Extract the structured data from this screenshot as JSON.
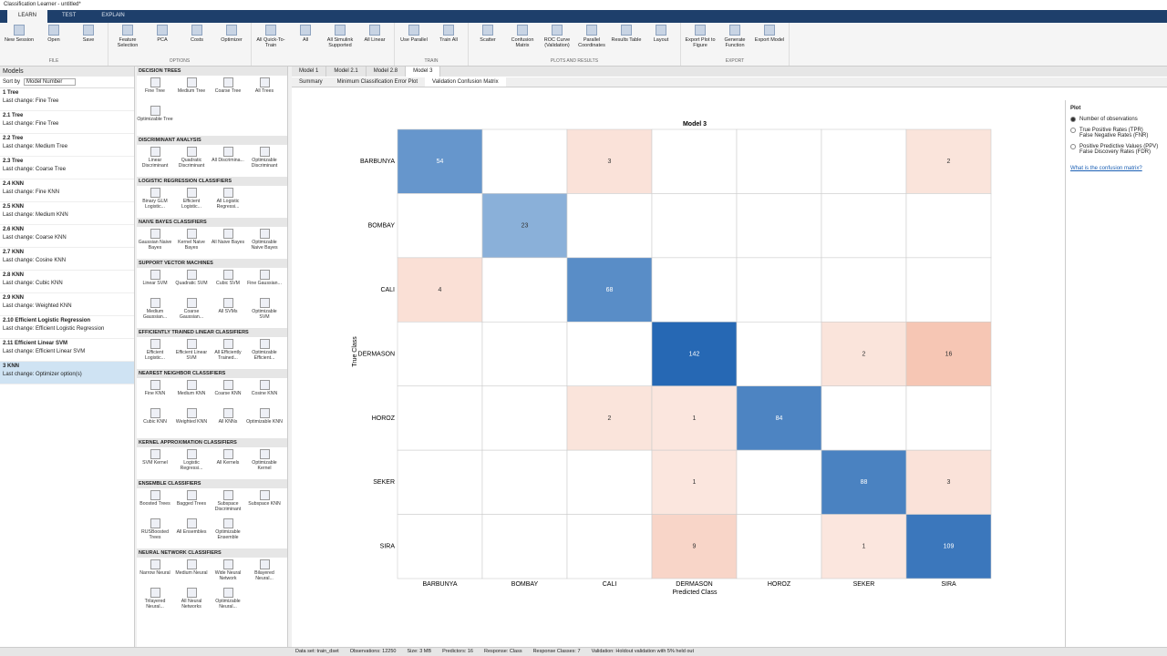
{
  "window": {
    "title": "Classification Learner - untitled*"
  },
  "tabs": [
    "LEARN",
    "TEST",
    "EXPLAIN"
  ],
  "toolstrip": [
    {
      "label": "FILE",
      "buttons": [
        "New Session",
        "Open",
        "Save"
      ]
    },
    {
      "label": "OPTIONS",
      "buttons": [
        "Feature Selection",
        "PCA",
        "Costs",
        "Optimizer"
      ]
    },
    {
      "label": null,
      "buttons": [
        "All Quick-To-Train",
        "All",
        "All Simulink Supported",
        "All Linear"
      ]
    },
    {
      "label": "TRAIN",
      "buttons": [
        "Use Parallel",
        "Train All"
      ]
    },
    {
      "label": "PLOTS AND RESULTS",
      "buttons": [
        "Scatter",
        "Confusion Matrix",
        "ROC Curve (Validation)",
        "Parallel Coordinates",
        "Results Table",
        "Layout"
      ]
    },
    {
      "label": "EXPORT",
      "buttons": [
        "Export Plot to Figure",
        "Generate Function",
        "Export Model"
      ]
    }
  ],
  "models": {
    "title": "Models",
    "sort_label": "Sort by",
    "sort_value": "Model Number",
    "items": [
      {
        "name": "1 Tree",
        "change": "Last change: Fine Tree"
      },
      {
        "name": "2.1 Tree",
        "change": "Last change: Fine Tree"
      },
      {
        "name": "2.2 Tree",
        "change": "Last change: Medium Tree"
      },
      {
        "name": "2.3 Tree",
        "change": "Last change: Coarse Tree"
      },
      {
        "name": "2.4 KNN",
        "change": "Last change: Fine KNN"
      },
      {
        "name": "2.5 KNN",
        "change": "Last change: Medium KNN"
      },
      {
        "name": "2.6 KNN",
        "change": "Last change: Coarse KNN"
      },
      {
        "name": "2.7 KNN",
        "change": "Last change: Cosine KNN"
      },
      {
        "name": "2.8 KNN",
        "change": "Last change: Cubic KNN"
      },
      {
        "name": "2.9 KNN",
        "change": "Last change: Weighted KNN"
      },
      {
        "name": "2.10 Efficient Logistic Regression",
        "change": "Last change: Efficient Logistic Regression"
      },
      {
        "name": "2.11 Efficient Linear SVM",
        "change": "Last change: Efficient Linear SVM"
      },
      {
        "name": "3 KNN",
        "change": "Last change: Optimizer option(s)"
      }
    ]
  },
  "gallery": [
    {
      "title": "DECISION TREES",
      "items": [
        "Fine Tree",
        "Medium Tree",
        "Coarse Tree",
        "All Trees",
        "Optimizable Tree"
      ]
    },
    {
      "title": "DISCRIMINANT ANALYSIS",
      "items": [
        "Linear Discriminant",
        "Quadratic Discriminant",
        "All Discrimina...",
        "Optimizable Discriminant"
      ]
    },
    {
      "title": "LOGISTIC REGRESSION CLASSIFIERS",
      "items": [
        "Binary GLM Logistic...",
        "Efficient Logistic...",
        "All Logistic Regressi..."
      ]
    },
    {
      "title": "NAIVE BAYES CLASSIFIERS",
      "items": [
        "Gaussian Naive Bayes",
        "Kernel Naive Bayes",
        "All Naive Bayes",
        "Optimizable Naive Bayes"
      ]
    },
    {
      "title": "SUPPORT VECTOR MACHINES",
      "items": [
        "Linear SVM",
        "Quadratic SVM",
        "Cubic SVM",
        "Fine Gaussian...",
        "Medium Gaussian...",
        "Coarse Gaussian...",
        "All SVMs",
        "Optimizable SVM"
      ]
    },
    {
      "title": "EFFICIENTLY TRAINED LINEAR CLASSIFIERS",
      "items": [
        "Efficient Logistic...",
        "Efficient Linear SVM",
        "All Efficiently Trained...",
        "Optimizable Efficient..."
      ]
    },
    {
      "title": "NEAREST NEIGHBOR CLASSIFIERS",
      "items": [
        "Fine KNN",
        "Medium KNN",
        "Coarse KNN",
        "Cosine KNN",
        "Cubic KNN",
        "Weighted KNN",
        "All KNNs",
        "Optimizable KNN"
      ]
    },
    {
      "title": "KERNEL APPROXIMATION CLASSIFIERS",
      "items": [
        "SVM Kernel",
        "Logistic Regressi...",
        "All Kernels",
        "Optimizable Kernel"
      ]
    },
    {
      "title": "ENSEMBLE CLASSIFIERS",
      "items": [
        "Boosted Trees",
        "Bagged Trees",
        "Subspace Discriminant",
        "Subspace KNN",
        "RUSBoosted Trees",
        "All Ensembles",
        "Optimizable Ensemble"
      ]
    },
    {
      "title": "NEURAL NETWORK CLASSIFIERS",
      "items": [
        "Narrow Neural",
        "Medium Neural",
        "Wide Neural Network",
        "Bilayered Neural...",
        "Trilayered Neural...",
        "All Neural Networks",
        "Optimizable Neural..."
      ]
    }
  ],
  "doc_tabs": [
    "Model 1",
    "Model 2.1",
    "Model 2.8",
    "Model 3"
  ],
  "sub_tabs": [
    "Summary",
    "Minimum Classification Error Plot",
    "Validation Confusion Matrix"
  ],
  "matrix": {
    "title": "Model 3",
    "xlabel": "Predicted Class",
    "ylabel": "True Class",
    "classes": [
      "BARBUNYA",
      "BOMBAY",
      "CALI",
      "DERMASON",
      "HOROZ",
      "SEKER",
      "SIRA"
    ],
    "values": [
      [
        54,
        null,
        3,
        null,
        null,
        null,
        2
      ],
      [
        null,
        23,
        null,
        null,
        null,
        null,
        null
      ],
      [
        4,
        null,
        68,
        null,
        null,
        null,
        null
      ],
      [
        null,
        null,
        null,
        142,
        null,
        2,
        16
      ],
      [
        null,
        null,
        2,
        1,
        84,
        null,
        null
      ],
      [
        null,
        null,
        null,
        1,
        null,
        88,
        3
      ],
      [
        null,
        null,
        null,
        9,
        null,
        1,
        109
      ]
    ]
  },
  "plot_panel": {
    "title": "Plot",
    "options": [
      [
        "Number of observations"
      ],
      [
        "True Positive Rates (TPR)",
        "False Negative Rates (FNR)"
      ],
      [
        "Positive Predictive Values (PPV)",
        "False Discovery Rates (FDR)"
      ]
    ],
    "link": "What is the confusion matrix?"
  },
  "status": [
    "Data set: train_dset",
    "Observations: 12250",
    "Size: 3 MB",
    "Predictors: 16",
    "Response: Class",
    "Response Classes: 7",
    "Validation: Holdout validation with 5% held out"
  ]
}
